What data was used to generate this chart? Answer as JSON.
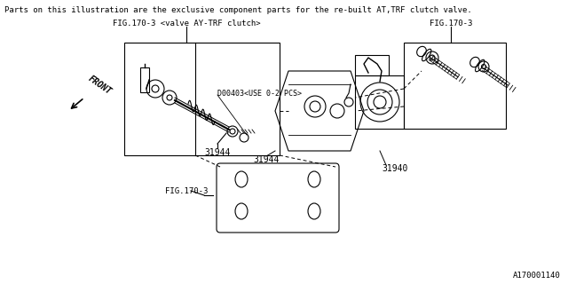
{
  "title_text": "Parts on this illustration are the exclusive component parts for the re-built AT,TRF clutch valve.",
  "fig_label_left": "FIG.170-3 <valve AY-TRF clutch>",
  "fig_label_right": "FIG.170-3",
  "fig_label_bottom": "FIG.170-3",
  "part_31944": "31944",
  "part_31940": "31940",
  "part_d00403": "D00403<USE 0-2 PCS>",
  "front_label": "FRONT",
  "diagram_id": "A170001140",
  "bg_color": "#ffffff",
  "line_color": "#000000",
  "text_color": "#000000",
  "font_size_title": 6.5,
  "font_size_label": 6.5,
  "font_size_part": 7.0,
  "font_size_diag_id": 6.5
}
